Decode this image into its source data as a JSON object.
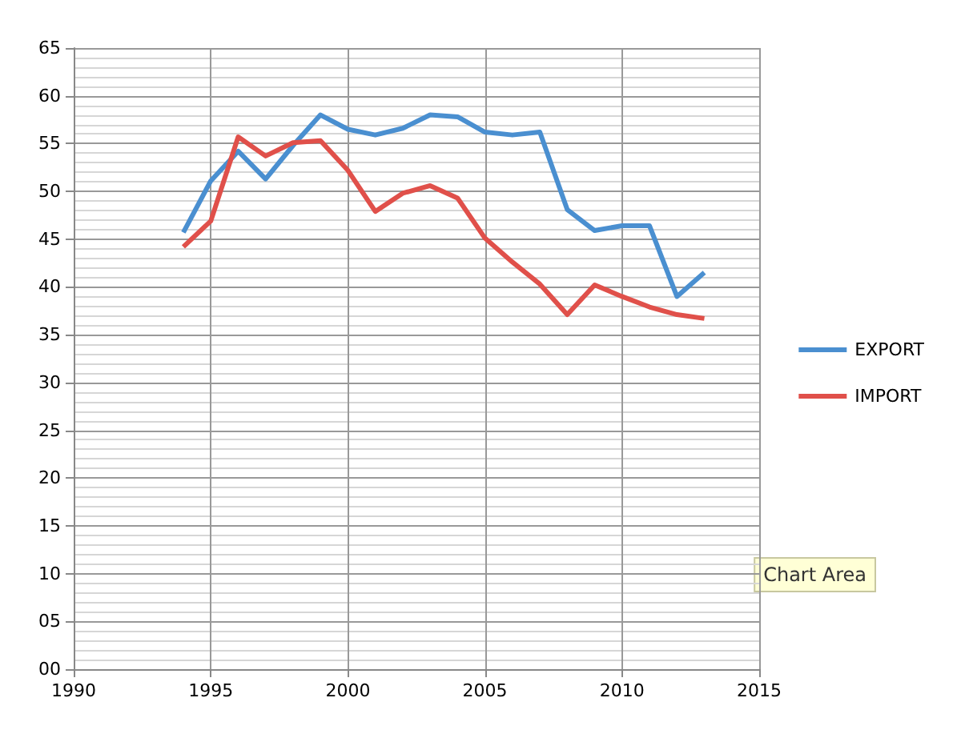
{
  "chart_data": {
    "type": "line",
    "x": [
      1994,
      1995,
      1996,
      1997,
      1998,
      1999,
      2000,
      2001,
      2002,
      2003,
      2004,
      2005,
      2006,
      2007,
      2008,
      2009,
      2010,
      2011,
      2012,
      2013
    ],
    "series": [
      {
        "name": "EXPORT",
        "color": "#4a8fd0",
        "values": [
          45.7,
          51.1,
          54.2,
          51.3,
          54.8,
          58.0,
          56.5,
          55.9,
          56.6,
          58.0,
          57.8,
          56.2,
          55.9,
          56.2,
          48.1,
          45.9,
          46.4,
          46.4,
          39.0,
          41.5
        ]
      },
      {
        "name": "IMPORT",
        "color": "#e0504a",
        "values": [
          44.2,
          46.9,
          55.7,
          53.7,
          55.1,
          55.3,
          52.2,
          47.9,
          49.8,
          50.6,
          49.3,
          45.1,
          42.6,
          40.3,
          37.1,
          40.2,
          39.0,
          37.9,
          37.1,
          36.7
        ]
      }
    ],
    "xlim": [
      1990,
      2015
    ],
    "xticks": [
      1990,
      1995,
      2000,
      2005,
      2010,
      2015
    ],
    "ylim": [
      0,
      65
    ],
    "yticks": [
      {
        "value": 0,
        "label": "00"
      },
      {
        "value": 5,
        "label": "05"
      },
      10,
      15,
      20,
      25,
      30,
      35,
      40,
      45,
      50,
      55,
      60,
      65
    ],
    "grid": true,
    "legend": "right",
    "marker": "none",
    "line_style": "solid",
    "annotations": [
      "Chart Area"
    ]
  }
}
